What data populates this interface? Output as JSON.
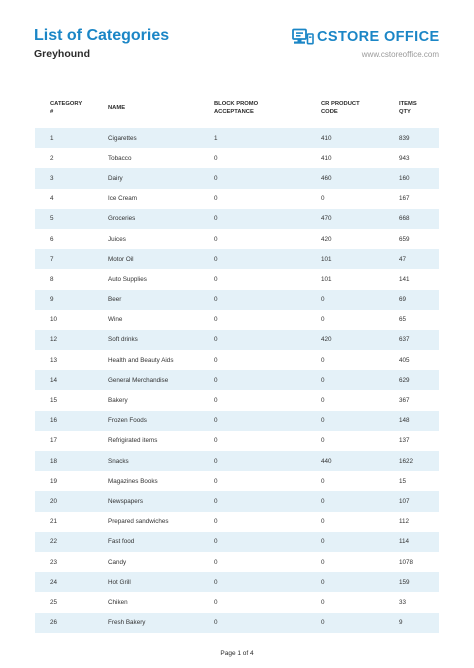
{
  "header": {
    "title": "List of Categories",
    "subtitle": "Greyhound",
    "logo_text": "CSTORE OFFICE",
    "website": "www.cstoreoffice.com"
  },
  "colors": {
    "accent": "#1b86c6",
    "row_stripe": "#e4f1f8"
  },
  "icons": {
    "logo": "register-monitor-icon"
  },
  "table": {
    "columns": [
      {
        "line1": "CATEGORY",
        "line2": "#"
      },
      {
        "line1": "NAME",
        "line2": ""
      },
      {
        "line1": "BLOCK PROMO",
        "line2": "ACCEPTANCE"
      },
      {
        "line1": "CR PRODUCT",
        "line2": "CODE"
      },
      {
        "line1": "ITEMS",
        "line2": "QTY"
      }
    ],
    "rows": [
      [
        "1",
        "Cigarettes",
        "1",
        "410",
        "839"
      ],
      [
        "2",
        "Tobacco",
        "0",
        "410",
        "943"
      ],
      [
        "3",
        "Dairy",
        "0",
        "460",
        "160"
      ],
      [
        "4",
        "Ice Cream",
        "0",
        "0",
        "167"
      ],
      [
        "5",
        "Groceries",
        "0",
        "470",
        "668"
      ],
      [
        "6",
        "Juices",
        "0",
        "420",
        "659"
      ],
      [
        "7",
        "Motor Oil",
        "0",
        "101",
        "47"
      ],
      [
        "8",
        "Auto Supplies",
        "0",
        "101",
        "141"
      ],
      [
        "9",
        "Beer",
        "0",
        "0",
        "69"
      ],
      [
        "10",
        "Wine",
        "0",
        "0",
        "65"
      ],
      [
        "12",
        "Soft drinks",
        "0",
        "420",
        "637"
      ],
      [
        "13",
        "Health and Beauty Aids",
        "0",
        "0",
        "405"
      ],
      [
        "14",
        "General Merchandise",
        "0",
        "0",
        "629"
      ],
      [
        "15",
        "Bakery",
        "0",
        "0",
        "367"
      ],
      [
        "16",
        "Frozen Foods",
        "0",
        "0",
        "148"
      ],
      [
        "17",
        "Refrigirated items",
        "0",
        "0",
        "137"
      ],
      [
        "18",
        "Snacks",
        "0",
        "440",
        "1622"
      ],
      [
        "19",
        "Magazines Books",
        "0",
        "0",
        "15"
      ],
      [
        "20",
        "Newspapers",
        "0",
        "0",
        "107"
      ],
      [
        "21",
        "Prepared sandwiches",
        "0",
        "0",
        "112"
      ],
      [
        "22",
        "Fast food",
        "0",
        "0",
        "114"
      ],
      [
        "23",
        "Candy",
        "0",
        "0",
        "1078"
      ],
      [
        "24",
        "Hot Grill",
        "0",
        "0",
        "159"
      ],
      [
        "25",
        "Chiken",
        "0",
        "0",
        "33"
      ],
      [
        "26",
        "Fresh Bakery",
        "0",
        "0",
        "9"
      ]
    ]
  },
  "footer": {
    "page_label": "Page 1 of 4"
  }
}
